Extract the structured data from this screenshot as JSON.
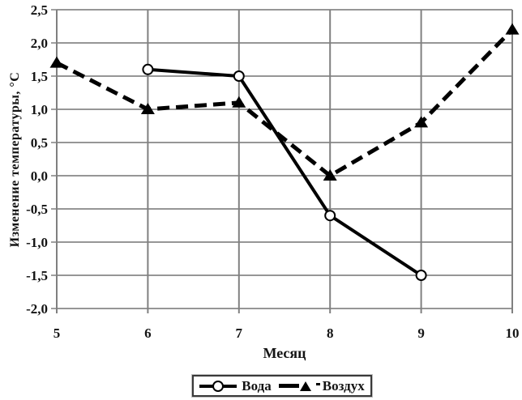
{
  "figure": {
    "background_color": "#ffffff"
  },
  "legend": {
    "items": [
      {
        "label": "Вода",
        "marker": "open-circle",
        "line": "solid"
      },
      {
        "label": "Воздух",
        "marker": "filled-triangle",
        "line": "dashed"
      }
    ]
  },
  "chart_data": {
    "type": "line",
    "title": "",
    "xlabel": "Месяц",
    "ylabel": "Изменение температуры, °С",
    "xlim": [
      5,
      10
    ],
    "ylim": [
      -2.0,
      2.5
    ],
    "grid": true,
    "legend_position": "bottom",
    "x_ticks": [
      5,
      6,
      7,
      8,
      9,
      10
    ],
    "x_tick_labels": [
      "5",
      "6",
      "7",
      "8",
      "9",
      "10"
    ],
    "y_ticks": [
      2.5,
      2.0,
      1.5,
      1.0,
      0.5,
      0.0,
      -0.5,
      -1.0,
      -1.5,
      -2.0
    ],
    "y_tick_labels": [
      "2,5",
      "2,0",
      "1,5",
      "1,0",
      "0,5",
      "0,0",
      "-0,5",
      "-1,0",
      "-1,5",
      "-2,0"
    ],
    "series": [
      {
        "name": "Вода",
        "marker": "open-circle",
        "line": "solid",
        "x": [
          6,
          7,
          8,
          9
        ],
        "y": [
          1.6,
          1.5,
          -0.6,
          -1.5
        ]
      },
      {
        "name": "Воздух",
        "marker": "filled-triangle",
        "line": "dashed",
        "x": [
          5,
          6,
          7,
          8,
          9,
          10
        ],
        "y": [
          1.7,
          1.0,
          1.1,
          0.0,
          0.8,
          2.2
        ]
      }
    ],
    "colors": {
      "series": "#000000",
      "grid_horizontal": "#2e2e2e",
      "grid_vertical": "#808080",
      "tick_text": "#141414",
      "background": "#ffffff"
    }
  }
}
